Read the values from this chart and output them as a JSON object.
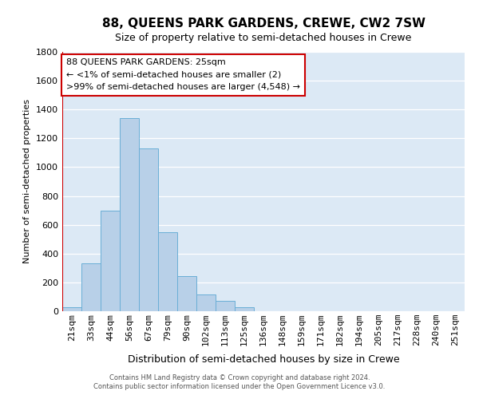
{
  "title": "88, QUEENS PARK GARDENS, CREWE, CW2 7SW",
  "subtitle": "Size of property relative to semi-detached houses in Crewe",
  "xlabel": "Distribution of semi-detached houses by size in Crewe",
  "ylabel": "Number of semi-detached properties",
  "bar_color": "#b8d0e8",
  "bar_edge_color": "#6aaed6",
  "background_color": "#dce9f5",
  "categories": [
    "21sqm",
    "33sqm",
    "44sqm",
    "56sqm",
    "67sqm",
    "79sqm",
    "90sqm",
    "102sqm",
    "113sqm",
    "125sqm",
    "136sqm",
    "148sqm",
    "159sqm",
    "171sqm",
    "182sqm",
    "194sqm",
    "205sqm",
    "217sqm",
    "228sqm",
    "240sqm",
    "251sqm"
  ],
  "values": [
    30,
    330,
    700,
    1340,
    1130,
    550,
    245,
    115,
    70,
    25,
    0,
    0,
    0,
    0,
    0,
    0,
    0,
    0,
    0,
    0,
    0
  ],
  "ylim": [
    0,
    1800
  ],
  "yticks": [
    0,
    200,
    400,
    600,
    800,
    1000,
    1200,
    1400,
    1600,
    1800
  ],
  "annotation_title": "88 QUEENS PARK GARDENS: 25sqm",
  "annotation_line1": "← <1% of semi-detached houses are smaller (2)",
  "annotation_line2": ">99% of semi-detached houses are larger (4,548) →",
  "box_color": "#ffffff",
  "box_edge_color": "#cc0000",
  "footer1": "Contains HM Land Registry data © Crown copyright and database right 2024.",
  "footer2": "Contains public sector information licensed under the Open Government Licence v3.0.",
  "title_fontsize": 11,
  "subtitle_fontsize": 9,
  "xlabel_fontsize": 9,
  "ylabel_fontsize": 8,
  "tick_fontsize": 8,
  "annot_fontsize": 8,
  "footer_fontsize": 6
}
